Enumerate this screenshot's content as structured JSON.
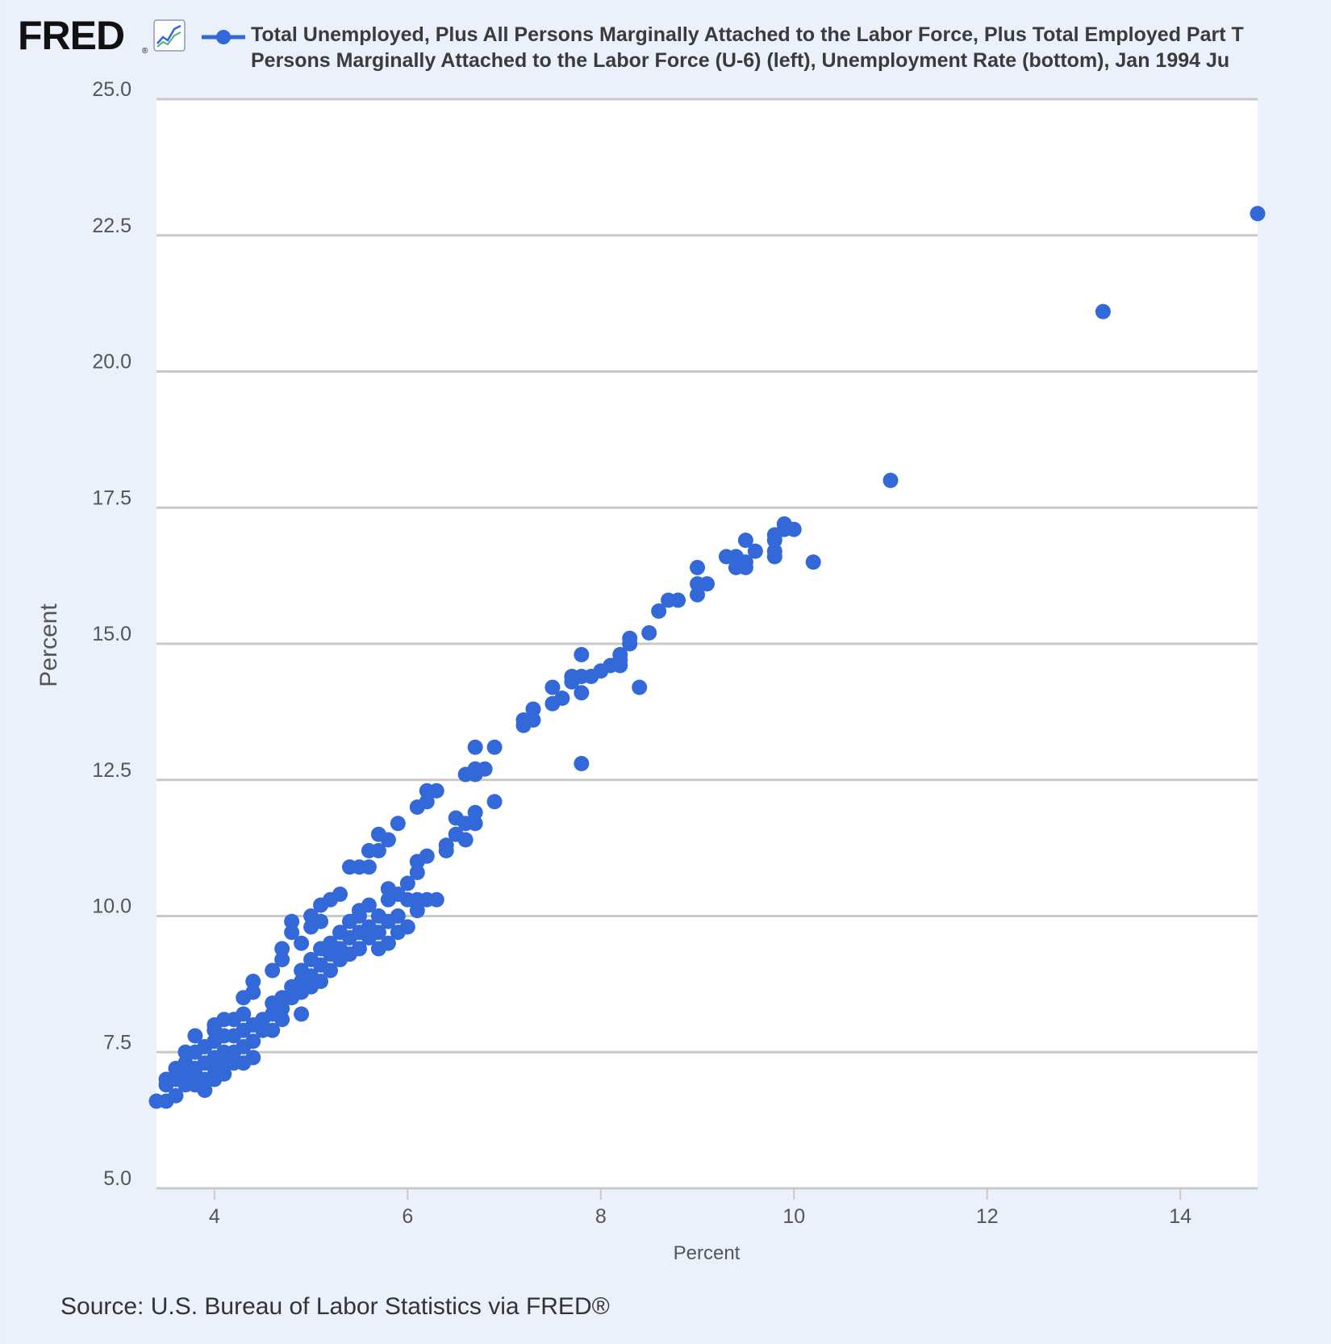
{
  "header": {
    "logo_text": "FRED",
    "logo_mark": "®",
    "logo_icon": "line-chart-icon",
    "legend_line_1": "Total Unemployed, Plus All Persons Marginally Attached to the Labor Force, Plus Total Employed Part T",
    "legend_line_2": "Persons Marginally Attached to the Labor Force (U-6) (left), Unemployment Rate (bottom), Jan 1994 Ju"
  },
  "footer": {
    "source": "Source: U.S. Bureau of Labor Statistics via FRED®"
  },
  "colors": {
    "series": "#3268d8",
    "background": "#ebf1fa",
    "plot": "#ffffff",
    "grid": "#c9c9c9"
  },
  "chart_data": {
    "type": "scatter",
    "xlabel": "Percent",
    "ylabel": "Percent",
    "xlim": [
      3.4,
      14.8
    ],
    "ylim": [
      5.0,
      25.0
    ],
    "x_ticks": [
      "4",
      "6",
      "8",
      "10",
      "12",
      "14"
    ],
    "y_ticks": [
      "5.0",
      "7.5",
      "10.0",
      "12.5",
      "15.0",
      "17.5",
      "20.0",
      "22.5",
      "25.0"
    ],
    "grid": "horizontal",
    "legend_position": "top",
    "series": [
      {
        "points": [
          [
            3.4,
            6.6
          ],
          [
            3.5,
            6.6
          ],
          [
            3.5,
            6.9
          ],
          [
            3.5,
            7.0
          ],
          [
            3.6,
            6.7
          ],
          [
            3.6,
            7.0
          ],
          [
            3.6,
            7.2
          ],
          [
            3.7,
            6.9
          ],
          [
            3.7,
            7.1
          ],
          [
            3.7,
            7.3
          ],
          [
            3.7,
            7.5
          ],
          [
            3.8,
            6.9
          ],
          [
            3.8,
            7.1
          ],
          [
            3.8,
            7.2
          ],
          [
            3.8,
            7.5
          ],
          [
            3.8,
            7.8
          ],
          [
            3.9,
            6.8
          ],
          [
            3.9,
            7.0
          ],
          [
            3.9,
            7.3
          ],
          [
            3.9,
            7.6
          ],
          [
            4.0,
            7.0
          ],
          [
            4.0,
            7.2
          ],
          [
            4.0,
            7.4
          ],
          [
            4.0,
            7.7
          ],
          [
            4.0,
            7.9
          ],
          [
            4.0,
            8.0
          ],
          [
            4.1,
            7.1
          ],
          [
            4.1,
            7.3
          ],
          [
            4.1,
            7.5
          ],
          [
            4.1,
            7.8
          ],
          [
            4.1,
            8.1
          ],
          [
            4.2,
            7.3
          ],
          [
            4.2,
            7.5
          ],
          [
            4.2,
            7.8
          ],
          [
            4.2,
            8.1
          ],
          [
            4.3,
            7.3
          ],
          [
            4.3,
            7.6
          ],
          [
            4.3,
            7.9
          ],
          [
            4.3,
            8.2
          ],
          [
            4.3,
            8.5
          ],
          [
            4.4,
            7.4
          ],
          [
            4.4,
            7.7
          ],
          [
            4.4,
            8.0
          ],
          [
            4.4,
            8.6
          ],
          [
            4.4,
            8.8
          ],
          [
            4.5,
            7.9
          ],
          [
            4.5,
            8.1
          ],
          [
            4.6,
            7.9
          ],
          [
            4.6,
            8.2
          ],
          [
            4.6,
            8.4
          ],
          [
            4.6,
            9.0
          ],
          [
            4.7,
            8.1
          ],
          [
            4.7,
            8.3
          ],
          [
            4.7,
            8.5
          ],
          [
            4.7,
            9.2
          ],
          [
            4.7,
            9.4
          ],
          [
            4.8,
            8.5
          ],
          [
            4.8,
            8.7
          ],
          [
            4.8,
            9.7
          ],
          [
            4.8,
            9.9
          ],
          [
            4.9,
            8.2
          ],
          [
            4.9,
            8.6
          ],
          [
            4.9,
            8.8
          ],
          [
            4.9,
            9.0
          ],
          [
            4.9,
            9.5
          ],
          [
            5.0,
            8.7
          ],
          [
            5.0,
            8.9
          ],
          [
            5.0,
            9.2
          ],
          [
            5.0,
            9.8
          ],
          [
            5.0,
            10.0
          ],
          [
            5.1,
            8.8
          ],
          [
            5.1,
            9.1
          ],
          [
            5.1,
            9.4
          ],
          [
            5.1,
            9.9
          ],
          [
            5.1,
            10.2
          ],
          [
            5.2,
            9.0
          ],
          [
            5.2,
            9.3
          ],
          [
            5.2,
            9.5
          ],
          [
            5.2,
            10.3
          ],
          [
            5.3,
            9.2
          ],
          [
            5.3,
            9.4
          ],
          [
            5.3,
            9.7
          ],
          [
            5.3,
            10.4
          ],
          [
            5.4,
            9.3
          ],
          [
            5.4,
            9.6
          ],
          [
            5.4,
            9.9
          ],
          [
            5.4,
            10.9
          ],
          [
            5.5,
            9.4
          ],
          [
            5.5,
            9.7
          ],
          [
            5.5,
            10.0
          ],
          [
            5.5,
            10.1
          ],
          [
            5.5,
            10.9
          ],
          [
            5.6,
            9.6
          ],
          [
            5.6,
            9.8
          ],
          [
            5.6,
            10.2
          ],
          [
            5.6,
            10.9
          ],
          [
            5.6,
            11.2
          ],
          [
            5.7,
            9.4
          ],
          [
            5.7,
            9.7
          ],
          [
            5.7,
            10.0
          ],
          [
            5.7,
            11.2
          ],
          [
            5.7,
            11.5
          ],
          [
            5.8,
            9.5
          ],
          [
            5.8,
            9.9
          ],
          [
            5.8,
            10.3
          ],
          [
            5.8,
            10.5
          ],
          [
            5.8,
            11.4
          ],
          [
            5.9,
            9.7
          ],
          [
            5.9,
            10.0
          ],
          [
            5.9,
            10.4
          ],
          [
            5.9,
            11.7
          ],
          [
            6.0,
            9.8
          ],
          [
            6.0,
            10.3
          ],
          [
            6.0,
            10.6
          ],
          [
            6.1,
            10.1
          ],
          [
            6.1,
            10.3
          ],
          [
            6.1,
            10.8
          ],
          [
            6.1,
            11.0
          ],
          [
            6.1,
            12.0
          ],
          [
            6.2,
            10.3
          ],
          [
            6.2,
            11.1
          ],
          [
            6.2,
            12.1
          ],
          [
            6.2,
            12.3
          ],
          [
            6.3,
            10.3
          ],
          [
            6.3,
            12.3
          ],
          [
            6.4,
            11.2
          ],
          [
            6.4,
            11.3
          ],
          [
            6.5,
            11.5
          ],
          [
            6.5,
            11.8
          ],
          [
            6.6,
            11.4
          ],
          [
            6.6,
            11.7
          ],
          [
            6.6,
            12.6
          ],
          [
            6.7,
            11.7
          ],
          [
            6.7,
            11.9
          ],
          [
            6.7,
            12.6
          ],
          [
            6.7,
            12.7
          ],
          [
            6.7,
            13.1
          ],
          [
            6.8,
            12.7
          ],
          [
            6.9,
            12.1
          ],
          [
            6.9,
            13.1
          ],
          [
            7.2,
            13.5
          ],
          [
            7.2,
            13.6
          ],
          [
            7.3,
            13.6
          ],
          [
            7.3,
            13.8
          ],
          [
            7.5,
            13.9
          ],
          [
            7.5,
            14.2
          ],
          [
            7.6,
            14.0
          ],
          [
            7.7,
            14.3
          ],
          [
            7.7,
            14.4
          ],
          [
            7.8,
            12.8
          ],
          [
            7.8,
            14.1
          ],
          [
            7.8,
            14.4
          ],
          [
            7.8,
            14.8
          ],
          [
            7.9,
            14.4
          ],
          [
            8.0,
            14.5
          ],
          [
            8.1,
            14.6
          ],
          [
            8.2,
            14.6
          ],
          [
            8.2,
            14.7
          ],
          [
            8.2,
            14.8
          ],
          [
            8.3,
            15.0
          ],
          [
            8.3,
            15.1
          ],
          [
            8.4,
            14.2
          ],
          [
            8.5,
            15.2
          ],
          [
            8.6,
            15.6
          ],
          [
            8.7,
            15.8
          ],
          [
            8.8,
            15.8
          ],
          [
            9.0,
            15.9
          ],
          [
            9.0,
            16.1
          ],
          [
            9.0,
            16.4
          ],
          [
            9.1,
            16.1
          ],
          [
            9.3,
            16.6
          ],
          [
            9.4,
            16.4
          ],
          [
            9.4,
            16.6
          ],
          [
            9.5,
            16.4
          ],
          [
            9.5,
            16.5
          ],
          [
            9.5,
            16.9
          ],
          [
            9.6,
            16.7
          ],
          [
            9.8,
            16.6
          ],
          [
            9.8,
            16.7
          ],
          [
            9.8,
            16.9
          ],
          [
            9.8,
            17.0
          ],
          [
            9.9,
            17.1
          ],
          [
            9.9,
            17.2
          ],
          [
            10.0,
            17.1
          ],
          [
            10.2,
            16.5
          ],
          [
            11.0,
            18.0
          ],
          [
            13.2,
            21.1
          ],
          [
            14.8,
            22.9
          ]
        ]
      }
    ]
  }
}
